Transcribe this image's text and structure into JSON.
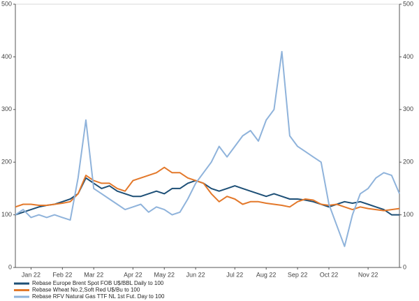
{
  "chart_data": {
    "type": "line",
    "categories": [
      null,
      null,
      "Jan 22",
      null,
      null,
      null,
      "Feb 22",
      null,
      null,
      null,
      "Mar 22",
      null,
      null,
      null,
      null,
      "Apr 22",
      null,
      null,
      null,
      "May 22",
      null,
      null,
      null,
      "Jun 22",
      null,
      null,
      null,
      null,
      "Jul 22",
      null,
      null,
      null,
      "Aug 22",
      null,
      null,
      null,
      "Sep 22",
      null,
      null,
      null,
      "Oct 22",
      null,
      null,
      null,
      null,
      "Nov 22",
      null,
      null,
      null,
      null
    ],
    "series": [
      {
        "name": "Rebase Europe Brent Spot FOB U$/BBL Daily to 100",
        "color": "#1d4f76",
        "values": [
          100,
          105,
          110,
          115,
          118,
          120,
          125,
          130,
          140,
          170,
          160,
          150,
          155,
          145,
          140,
          135,
          135,
          140,
          145,
          140,
          150,
          150,
          160,
          165,
          160,
          150,
          145,
          150,
          155,
          150,
          145,
          140,
          135,
          140,
          135,
          130,
          130,
          128,
          125,
          120,
          115,
          120,
          125,
          122,
          125,
          120,
          115,
          110,
          100,
          100
        ]
      },
      {
        "name": "Rebase Wheat No.2,Soft Red U$/Bu to 100",
        "color": "#e3782a",
        "values": [
          115,
          120,
          120,
          118,
          118,
          120,
          122,
          125,
          140,
          175,
          165,
          160,
          160,
          150,
          145,
          165,
          170,
          175,
          180,
          190,
          180,
          180,
          170,
          165,
          160,
          140,
          125,
          135,
          130,
          120,
          125,
          125,
          122,
          120,
          118,
          115,
          125,
          130,
          128,
          120,
          118,
          120,
          115,
          110,
          115,
          112,
          110,
          108,
          110,
          112
        ]
      },
      {
        "name": "Rebase RFV Natural Gas TTF NL 1st Fut. Day to 100",
        "color": "#8fb3db",
        "values": [
          100,
          110,
          95,
          100,
          95,
          100,
          95,
          90,
          170,
          280,
          150,
          140,
          130,
          120,
          110,
          115,
          120,
          105,
          115,
          110,
          100,
          105,
          130,
          160,
          180,
          200,
          230,
          210,
          230,
          250,
          260,
          240,
          280,
          300,
          410,
          250,
          230,
          220,
          210,
          200,
          120,
          80,
          40,
          100,
          140,
          150,
          170,
          180,
          175,
          140
        ]
      }
    ],
    "ylim": [
      0,
      500
    ],
    "yticks": [
      0,
      100,
      200,
      300,
      400,
      500
    ],
    "y2lim": [
      0,
      500
    ],
    "y2ticks": [
      0,
      100,
      200,
      300,
      400,
      500
    ]
  }
}
